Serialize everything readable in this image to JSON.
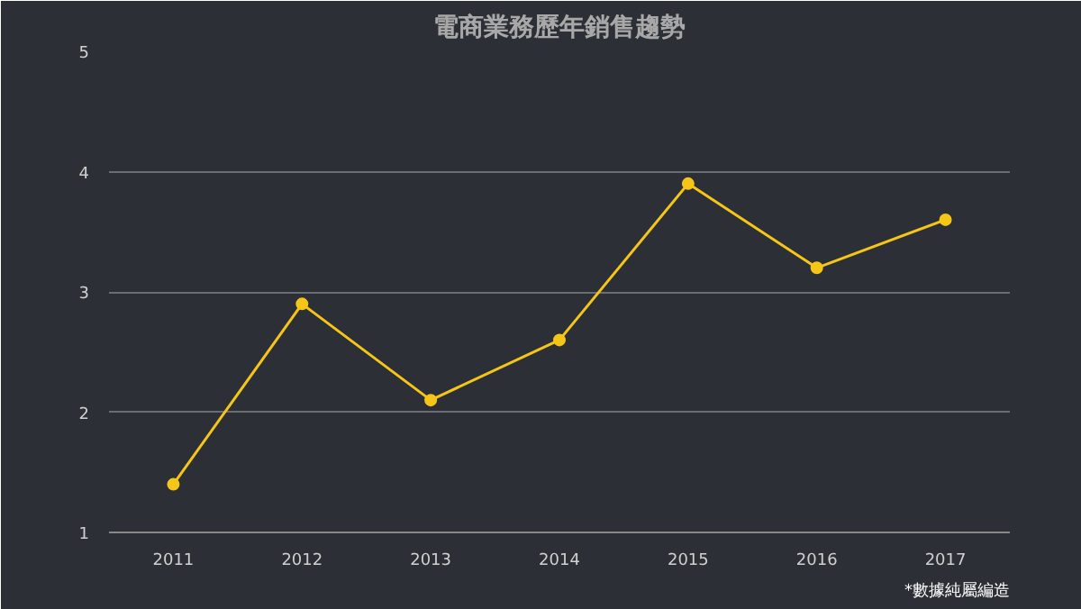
{
  "chart_data": {
    "type": "line",
    "title": "電商業務歷年銷售趨勢",
    "categories": [
      "2011",
      "2012",
      "2013",
      "2014",
      "2015",
      "2016",
      "2017"
    ],
    "series": [
      {
        "color": "#f5c518",
        "values": [
          1.4,
          2.9,
          2.1,
          2.6,
          3.9,
          3.2,
          3.6
        ]
      }
    ],
    "ylim": [
      1,
      5
    ],
    "yticks": [
      1,
      2,
      3,
      4,
      5
    ],
    "grid": "y",
    "marker": "circle",
    "line_style": "solid",
    "annotations": [
      "*數據純屬編造"
    ]
  }
}
